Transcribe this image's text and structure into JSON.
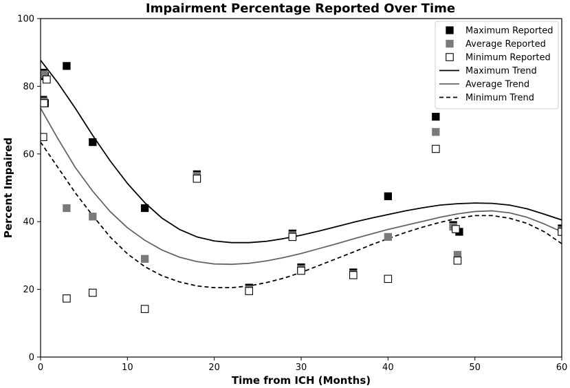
{
  "chart_data": {
    "type": "scatter",
    "title": "Impairment Percentage Reported Over Time",
    "xlabel": "Time from ICH (Months)",
    "ylabel": "Percent Impaired",
    "xlim": [
      0,
      60
    ],
    "ylim": [
      0,
      100
    ],
    "xticks": [
      "0",
      "10",
      "20",
      "30",
      "40",
      "50",
      "60"
    ],
    "yticks": [
      "0",
      "20",
      "40",
      "60",
      "80",
      "100"
    ],
    "legend_position": "top-right",
    "series": [
      {
        "name": "Maximum Reported",
        "kind": "points",
        "marker": "filled-square",
        "color": "#000000",
        "points": [
          [
            0.3,
            84
          ],
          [
            0.5,
            83
          ],
          [
            0.3,
            76
          ],
          [
            0.5,
            75
          ],
          [
            3,
            86
          ],
          [
            6,
            63.5
          ],
          [
            12,
            44
          ],
          [
            18,
            54
          ],
          [
            24,
            20.5
          ],
          [
            29,
            36.5
          ],
          [
            30,
            26.5
          ],
          [
            36,
            25
          ],
          [
            40,
            47.5
          ],
          [
            45.5,
            71
          ],
          [
            47.5,
            39
          ],
          [
            48.2,
            37
          ],
          [
            60,
            38
          ]
        ]
      },
      {
        "name": "Average Reported",
        "kind": "points",
        "marker": "gray-square",
        "color": "#7a7a7a",
        "points": [
          [
            0.4,
            83.5
          ],
          [
            0.4,
            75.5
          ],
          [
            3,
            44
          ],
          [
            6,
            41.5
          ],
          [
            12,
            29
          ],
          [
            18,
            53.5
          ],
          [
            24,
            20
          ],
          [
            29,
            36
          ],
          [
            30,
            26
          ],
          [
            36,
            24.5
          ],
          [
            40,
            35.5
          ],
          [
            45.5,
            66.5
          ],
          [
            47.5,
            38.5
          ],
          [
            48,
            30.2
          ],
          [
            60,
            37.5
          ]
        ]
      },
      {
        "name": "Minimum Reported",
        "kind": "points",
        "marker": "open-square",
        "color": "#000000",
        "points": [
          [
            0.7,
            82
          ],
          [
            0.4,
            75
          ],
          [
            0.3,
            65
          ],
          [
            3,
            17.3
          ],
          [
            6,
            19
          ],
          [
            12,
            14.2
          ],
          [
            18,
            52.7
          ],
          [
            24,
            19.5
          ],
          [
            29,
            35.5
          ],
          [
            30,
            25.5
          ],
          [
            36,
            24.2
          ],
          [
            40,
            23.1
          ],
          [
            45.5,
            61.5
          ],
          [
            47.8,
            37.8
          ],
          [
            48,
            28.5
          ],
          [
            60,
            37
          ]
        ]
      },
      {
        "name": "Maximum Trend",
        "kind": "line",
        "style": "solid",
        "color": "#000000",
        "points": [
          [
            0,
            87.7
          ],
          [
            2,
            81
          ],
          [
            4,
            73.5
          ],
          [
            6,
            65.5
          ],
          [
            8,
            58
          ],
          [
            10,
            51.3
          ],
          [
            12,
            45.6
          ],
          [
            14,
            41
          ],
          [
            16,
            37.7
          ],
          [
            18,
            35.5
          ],
          [
            20,
            34.3
          ],
          [
            22,
            33.8
          ],
          [
            24,
            33.8
          ],
          [
            26,
            34.2
          ],
          [
            28,
            35
          ],
          [
            30,
            36
          ],
          [
            32,
            37.2
          ],
          [
            34,
            38.5
          ],
          [
            36,
            39.8
          ],
          [
            38,
            41
          ],
          [
            40,
            42.1
          ],
          [
            42,
            43.2
          ],
          [
            44,
            44.1
          ],
          [
            46,
            44.9
          ],
          [
            48,
            45.3
          ],
          [
            50,
            45.5
          ],
          [
            52,
            45.4
          ],
          [
            54,
            44.9
          ],
          [
            56,
            43.8
          ],
          [
            58,
            42.2
          ],
          [
            60,
            40.5
          ]
        ]
      },
      {
        "name": "Average Trend",
        "kind": "line",
        "style": "solid",
        "color": "#646464",
        "points": [
          [
            0,
            73.5
          ],
          [
            2,
            64.5
          ],
          [
            4,
            56
          ],
          [
            6,
            49
          ],
          [
            8,
            43
          ],
          [
            10,
            38.2
          ],
          [
            12,
            34.5
          ],
          [
            14,
            31.6
          ],
          [
            16,
            29.5
          ],
          [
            18,
            28.2
          ],
          [
            20,
            27.5
          ],
          [
            22,
            27.4
          ],
          [
            24,
            27.7
          ],
          [
            26,
            28.4
          ],
          [
            28,
            29.4
          ],
          [
            30,
            30.6
          ],
          [
            32,
            32
          ],
          [
            34,
            33.4
          ],
          [
            36,
            34.9
          ],
          [
            38,
            36.3
          ],
          [
            40,
            37.7
          ],
          [
            42,
            38.9
          ],
          [
            44,
            40.1
          ],
          [
            46,
            41.3
          ],
          [
            48,
            42.3
          ],
          [
            50,
            43
          ],
          [
            52,
            43.2
          ],
          [
            54,
            42.6
          ],
          [
            56,
            41.3
          ],
          [
            58,
            39.3
          ],
          [
            60,
            37
          ]
        ]
      },
      {
        "name": "Minimum Trend",
        "kind": "line",
        "style": "dashed",
        "color": "#000000",
        "points": [
          [
            0,
            63.5
          ],
          [
            2,
            56
          ],
          [
            4,
            48.5
          ],
          [
            6,
            41.8
          ],
          [
            8,
            35.5
          ],
          [
            10,
            30.5
          ],
          [
            12,
            26.7
          ],
          [
            14,
            24
          ],
          [
            16,
            22.2
          ],
          [
            18,
            21
          ],
          [
            20,
            20.5
          ],
          [
            22,
            20.5
          ],
          [
            24,
            21
          ],
          [
            26,
            22
          ],
          [
            28,
            23.3
          ],
          [
            30,
            25
          ],
          [
            32,
            27
          ],
          [
            34,
            29
          ],
          [
            36,
            31
          ],
          [
            38,
            33.1
          ],
          [
            40,
            35
          ],
          [
            42,
            36.8
          ],
          [
            44,
            38.4
          ],
          [
            46,
            39.8
          ],
          [
            48,
            41
          ],
          [
            50,
            41.8
          ],
          [
            52,
            41.8
          ],
          [
            54,
            41
          ],
          [
            56,
            39.5
          ],
          [
            58,
            37
          ],
          [
            60,
            33.5
          ]
        ]
      }
    ]
  }
}
